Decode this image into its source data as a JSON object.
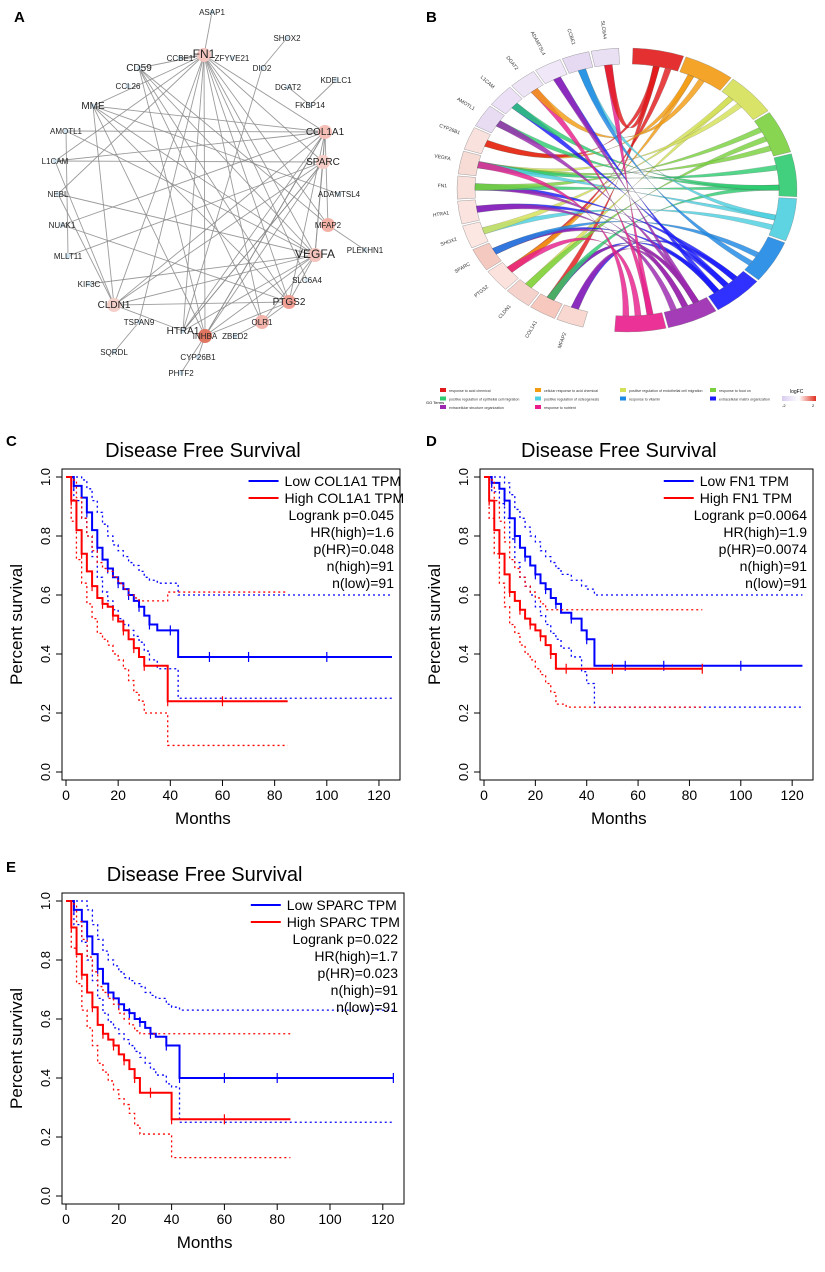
{
  "panel_labels": {
    "a": "A",
    "b": "B",
    "c": "C",
    "d": "D",
    "e": "E"
  },
  "network": {
    "nodes": [
      "ASAP1",
      "FN1",
      "ZFYVE21",
      "CCBE1",
      "SHOX2",
      "DIO2",
      "CD59",
      "CCL26",
      "DGAT2",
      "KDELC1",
      "FKBP14",
      "MME",
      "AMOTL1",
      "COL1A1",
      "L1CAM",
      "SPARC",
      "ADAMTSL4",
      "NEBL",
      "NUAK1",
      "MFAP2",
      "PLEKHN1",
      "MLLT11",
      "VEGFA",
      "KIF3C",
      "SLC6A4",
      "CLDN1",
      "PTGS2",
      "TSPAN9",
      "OLR1",
      "HTRA1",
      "INHBA",
      "ZBED2",
      "SQRDL",
      "CYP26B1",
      "PHTF2"
    ]
  },
  "chord": {
    "genes": [
      "MFAP2",
      "COL1A1",
      "CLDN1",
      "PTGS2",
      "SPARC",
      "SHOX2",
      "HTRA1",
      "FN1",
      "VEGFA",
      "CYP26B1",
      "AMOTL1",
      "L1CAM",
      "DGAT2",
      "ADAMTSL4",
      "CCBE1",
      "SLC6A4"
    ],
    "go_title": "GO Terms",
    "logfc_title": "logFC",
    "logfc_min": "-2",
    "logfc_max": "2",
    "terms": [
      {
        "label": "response to acid chemical",
        "color": "#e31a1c"
      },
      {
        "label": "cellular response to acid chemical",
        "color": "#f39c12"
      },
      {
        "label": "positive regulation of endothelial cell migration",
        "color": "#d4e157"
      },
      {
        "label": "response to food on",
        "color": "#7bd13f"
      },
      {
        "label": "positive regulation of epithelial cell migration",
        "color": "#2ecc71"
      },
      {
        "label": "positive regulation of osteogenesis",
        "color": "#4dd0e1"
      },
      {
        "label": "response to vitamin",
        "color": "#1e88e5"
      },
      {
        "label": "extracellular matrix organization",
        "color": "#1a1aff"
      },
      {
        "label": "extracellular structure organization",
        "color": "#9c27b0"
      },
      {
        "label": "response to nutrient",
        "color": "#e91e8c"
      }
    ]
  },
  "chart_data": [
    {
      "type": "line",
      "panel": "C",
      "title": "Disease Free Survival",
      "xlabel": "Months",
      "ylabel": "Percent survival",
      "xlim": [
        0,
        125
      ],
      "ylim": [
        0,
        1
      ],
      "xticks": [
        0,
        20,
        40,
        60,
        80,
        100,
        120
      ],
      "yticks": [
        "0.0",
        "0.2",
        "0.4",
        "0.6",
        "0.8",
        "1.0"
      ],
      "legend_series": [
        "Low COL1A1 TPM",
        "High COL1A1 TPM"
      ],
      "stats": [
        "Logrank p=0.045",
        "HR(high)=1.6",
        "p(HR)=0.048",
        "n(high)=91",
        "n(low)=91"
      ],
      "series": [
        {
          "name": "Low COL1A1 TPM",
          "color": "#0000ff",
          "x": [
            0,
            3,
            6,
            8,
            10,
            12,
            14,
            16,
            18,
            20,
            22,
            24,
            26,
            28,
            30,
            32,
            35,
            40,
            43,
            55,
            60,
            70,
            80,
            100,
            125
          ],
          "y": [
            1.0,
            0.97,
            0.93,
            0.88,
            0.82,
            0.76,
            0.72,
            0.69,
            0.66,
            0.64,
            0.62,
            0.6,
            0.58,
            0.56,
            0.53,
            0.5,
            0.48,
            0.48,
            0.39,
            0.39,
            0.39,
            0.39,
            0.39,
            0.39,
            0.39
          ],
          "upper": [
            1.0,
            1.0,
            0.99,
            0.96,
            0.92,
            0.88,
            0.84,
            0.8,
            0.77,
            0.75,
            0.73,
            0.71,
            0.7,
            0.68,
            0.66,
            0.65,
            0.64,
            0.64,
            0.6,
            0.6,
            0.6,
            0.6,
            0.6,
            0.6,
            0.6
          ],
          "lower": [
            1.0,
            0.92,
            0.86,
            0.8,
            0.73,
            0.66,
            0.61,
            0.58,
            0.55,
            0.52,
            0.5,
            0.48,
            0.46,
            0.44,
            0.41,
            0.38,
            0.35,
            0.35,
            0.25,
            0.25,
            0.25,
            0.25,
            0.25,
            0.25,
            0.25
          ]
        },
        {
          "name": "High COL1A1 TPM",
          "color": "#ff0000",
          "x": [
            0,
            2,
            4,
            6,
            8,
            10,
            12,
            14,
            16,
            18,
            20,
            22,
            24,
            26,
            28,
            30,
            35,
            39,
            45,
            60,
            85
          ],
          "y": [
            1.0,
            0.92,
            0.82,
            0.74,
            0.68,
            0.63,
            0.59,
            0.57,
            0.56,
            0.53,
            0.51,
            0.48,
            0.45,
            0.42,
            0.39,
            0.36,
            0.36,
            0.24,
            0.24,
            0.24,
            0.24
          ],
          "upper": [
            1.0,
            0.99,
            0.93,
            0.86,
            0.8,
            0.75,
            0.71,
            0.69,
            0.68,
            0.66,
            0.64,
            0.62,
            0.6,
            0.59,
            0.58,
            0.58,
            0.58,
            0.61,
            0.61,
            0.61,
            0.61
          ],
          "lower": [
            1.0,
            0.85,
            0.72,
            0.64,
            0.57,
            0.52,
            0.47,
            0.45,
            0.43,
            0.4,
            0.38,
            0.35,
            0.31,
            0.27,
            0.24,
            0.2,
            0.2,
            0.09,
            0.09,
            0.09,
            0.09
          ]
        }
      ]
    },
    {
      "type": "line",
      "panel": "D",
      "title": "Disease Free Survival",
      "xlabel": "Months",
      "ylabel": "Percent survival",
      "xlim": [
        0,
        125
      ],
      "ylim": [
        0,
        1
      ],
      "xticks": [
        0,
        20,
        40,
        60,
        80,
        100,
        120
      ],
      "yticks": [
        "0.0",
        "0.2",
        "0.4",
        "0.6",
        "0.8",
        "1.0"
      ],
      "legend_series": [
        "Low FN1 TPM",
        "High FN1 TPM"
      ],
      "stats": [
        "Logrank p=0.0064",
        "HR(high)=1.9",
        "p(HR)=0.0074",
        "n(high)=91",
        "n(low)=91"
      ],
      "series": [
        {
          "name": "Low FN1 TPM",
          "color": "#0000ff",
          "x": [
            0,
            3,
            6,
            8,
            10,
            12,
            14,
            16,
            18,
            20,
            22,
            24,
            26,
            28,
            30,
            34,
            38,
            40,
            43,
            55,
            60,
            70,
            80,
            100,
            124
          ],
          "y": [
            1.0,
            0.98,
            0.96,
            0.92,
            0.86,
            0.8,
            0.76,
            0.73,
            0.7,
            0.67,
            0.64,
            0.62,
            0.59,
            0.57,
            0.54,
            0.52,
            0.48,
            0.45,
            0.36,
            0.36,
            0.36,
            0.36,
            0.36,
            0.36,
            0.36
          ],
          "upper": [
            1.0,
            1.0,
            1.0,
            0.98,
            0.94,
            0.89,
            0.86,
            0.83,
            0.8,
            0.78,
            0.75,
            0.73,
            0.71,
            0.69,
            0.67,
            0.65,
            0.63,
            0.62,
            0.6,
            0.6,
            0.6,
            0.6,
            0.6,
            0.6,
            0.6
          ],
          "lower": [
            1.0,
            0.95,
            0.91,
            0.86,
            0.79,
            0.71,
            0.66,
            0.63,
            0.6,
            0.56,
            0.53,
            0.5,
            0.47,
            0.45,
            0.42,
            0.39,
            0.34,
            0.3,
            0.22,
            0.22,
            0.22,
            0.22,
            0.22,
            0.22,
            0.22
          ]
        },
        {
          "name": "High FN1 TPM",
          "color": "#ff0000",
          "x": [
            0,
            2,
            4,
            6,
            8,
            10,
            12,
            14,
            16,
            18,
            20,
            22,
            24,
            26,
            28,
            32,
            40,
            50,
            60,
            85
          ],
          "y": [
            1.0,
            0.92,
            0.82,
            0.74,
            0.67,
            0.61,
            0.58,
            0.55,
            0.52,
            0.5,
            0.48,
            0.46,
            0.43,
            0.4,
            0.35,
            0.35,
            0.35,
            0.35,
            0.35,
            0.35
          ],
          "upper": [
            1.0,
            0.99,
            0.92,
            0.85,
            0.78,
            0.72,
            0.69,
            0.66,
            0.63,
            0.61,
            0.59,
            0.57,
            0.55,
            0.55,
            0.55,
            0.55,
            0.55,
            0.55,
            0.55,
            0.55
          ],
          "lower": [
            1.0,
            0.86,
            0.74,
            0.64,
            0.56,
            0.5,
            0.47,
            0.43,
            0.4,
            0.38,
            0.35,
            0.33,
            0.3,
            0.27,
            0.23,
            0.22,
            0.22,
            0.22,
            0.22,
            0.22
          ]
        }
      ]
    },
    {
      "type": "line",
      "panel": "E",
      "title": "Disease Free Survival",
      "xlabel": "Months",
      "ylabel": "Percent survival",
      "xlim": [
        0,
        125
      ],
      "ylim": [
        0,
        1
      ],
      "xticks": [
        0,
        20,
        40,
        60,
        80,
        100,
        120
      ],
      "yticks": [
        "0.0",
        "0.2",
        "0.4",
        "0.6",
        "0.8",
        "1.0"
      ],
      "legend_series": [
        "Low SPARC TPM",
        "High SPARC TPM"
      ],
      "stats": [
        "Logrank p=0.022",
        "HR(high)=1.7",
        "p(HR)=0.023",
        "n(high)=91",
        "n(low)=91"
      ],
      "series": [
        {
          "name": "Low SPARC TPM",
          "color": "#0000ff",
          "x": [
            0,
            3,
            6,
            8,
            10,
            12,
            14,
            16,
            18,
            20,
            22,
            24,
            26,
            28,
            30,
            32,
            34,
            38,
            40,
            43,
            50,
            60,
            70,
            80,
            100,
            124
          ],
          "y": [
            1.0,
            0.97,
            0.93,
            0.88,
            0.82,
            0.77,
            0.72,
            0.69,
            0.67,
            0.65,
            0.63,
            0.62,
            0.6,
            0.59,
            0.57,
            0.55,
            0.54,
            0.51,
            0.51,
            0.4,
            0.4,
            0.4,
            0.4,
            0.4,
            0.4,
            0.4
          ],
          "upper": [
            1.0,
            1.0,
            1.0,
            0.97,
            0.92,
            0.87,
            0.83,
            0.8,
            0.78,
            0.76,
            0.74,
            0.73,
            0.72,
            0.71,
            0.69,
            0.68,
            0.67,
            0.65,
            0.64,
            0.63,
            0.63,
            0.63,
            0.63,
            0.63,
            0.63,
            0.63
          ],
          "lower": [
            1.0,
            0.92,
            0.86,
            0.8,
            0.73,
            0.67,
            0.62,
            0.59,
            0.57,
            0.55,
            0.53,
            0.51,
            0.49,
            0.47,
            0.45,
            0.43,
            0.41,
            0.38,
            0.37,
            0.25,
            0.25,
            0.25,
            0.25,
            0.25,
            0.25,
            0.25
          ]
        },
        {
          "name": "High SPARC TPM",
          "color": "#ff0000",
          "x": [
            0,
            2,
            4,
            6,
            8,
            10,
            12,
            14,
            16,
            18,
            20,
            22,
            24,
            26,
            28,
            32,
            36,
            40,
            50,
            60,
            85
          ],
          "y": [
            1.0,
            0.91,
            0.82,
            0.75,
            0.69,
            0.64,
            0.58,
            0.55,
            0.53,
            0.51,
            0.48,
            0.46,
            0.43,
            0.4,
            0.35,
            0.35,
            0.35,
            0.26,
            0.26,
            0.26,
            0.26
          ],
          "upper": [
            1.0,
            0.99,
            0.93,
            0.87,
            0.81,
            0.76,
            0.71,
            0.69,
            0.67,
            0.65,
            0.62,
            0.6,
            0.58,
            0.56,
            0.55,
            0.55,
            0.55,
            0.55,
            0.55,
            0.55,
            0.55
          ],
          "lower": [
            1.0,
            0.84,
            0.72,
            0.63,
            0.57,
            0.51,
            0.45,
            0.42,
            0.39,
            0.36,
            0.33,
            0.31,
            0.28,
            0.24,
            0.21,
            0.21,
            0.21,
            0.13,
            0.13,
            0.13,
            0.13
          ]
        }
      ]
    }
  ]
}
